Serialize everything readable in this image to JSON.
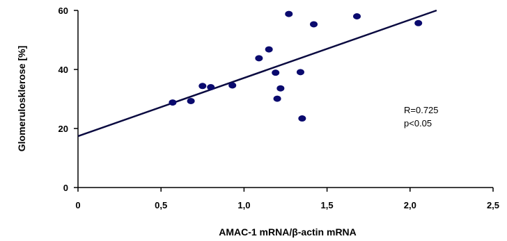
{
  "chart_data": {
    "type": "scatter",
    "xlabel": "AMAC-1 mRNA/β-actin mRNA",
    "ylabel": "Glomerulosklerose [%]",
    "xlim": [
      0,
      2.5
    ],
    "ylim": [
      0,
      60
    ],
    "x_ticks": [
      "0",
      "0,5",
      "1,0",
      "1,5",
      "2,0",
      "2,5"
    ],
    "y_ticks": [
      "0",
      "20",
      "40",
      "60"
    ],
    "x_tick_values": [
      0,
      0.5,
      1.0,
      1.5,
      2.0,
      2.5
    ],
    "y_tick_values": [
      0,
      20,
      40,
      60
    ],
    "grid": false,
    "points": [
      {
        "x": 0.57,
        "y": 28.8
      },
      {
        "x": 0.68,
        "y": 29.3
      },
      {
        "x": 0.75,
        "y": 34.4
      },
      {
        "x": 0.8,
        "y": 34.0
      },
      {
        "x": 0.93,
        "y": 34.6
      },
      {
        "x": 1.09,
        "y": 43.8
      },
      {
        "x": 1.15,
        "y": 46.8
      },
      {
        "x": 1.19,
        "y": 38.9
      },
      {
        "x": 1.2,
        "y": 30.1
      },
      {
        "x": 1.22,
        "y": 33.6
      },
      {
        "x": 1.27,
        "y": 58.8
      },
      {
        "x": 1.34,
        "y": 39.1
      },
      {
        "x": 1.35,
        "y": 23.4
      },
      {
        "x": 1.42,
        "y": 55.3
      },
      {
        "x": 1.68,
        "y": 58.0
      },
      {
        "x": 2.05,
        "y": 55.7
      }
    ],
    "regression_line": {
      "x": [
        0,
        2.16
      ],
      "y": [
        17.4,
        60
      ]
    },
    "annotations": [
      "R=0.725",
      "p<0.05"
    ],
    "colors": {
      "points": "#0a0a6e",
      "line": "#0a0a40",
      "axis": "#000000"
    }
  }
}
